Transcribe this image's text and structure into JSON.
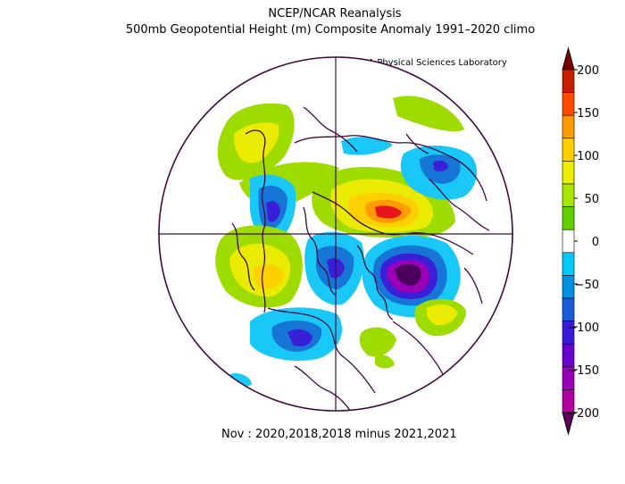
{
  "title": {
    "line1": "NCEP/NCAR Reanalysis",
    "line2": "500mb Geopotential Height (m) Composite Anomaly 1991–2020 climo"
  },
  "credit": "NOAA Physical Sciences Laboratory",
  "footer": "Nov : 2020,2018,2018 minus 2021,2021",
  "colorbar": {
    "labels": [
      "200",
      "150",
      "100",
      "50",
      "0",
      "−50",
      "−100",
      "−150",
      "−200"
    ],
    "colors": [
      "#7a0000",
      "#c81e00",
      "#ff4a00",
      "#ff9a00",
      "#ffd000",
      "#eded00",
      "#a8e600",
      "#62d100",
      "#ffffff",
      "#00c8f8",
      "#0090e0",
      "#1a5ad8",
      "#3a1ad8",
      "#6a00d0",
      "#9a00b8",
      "#b000a0",
      "#60005a"
    ]
  },
  "map_projection": "north-polar-stereographic",
  "anomaly_colors": {
    "positive_strong": "#e8141c",
    "positive": "#ff9a00",
    "positive_weak": "#eaeb00",
    "positive_faint": "#9edc00",
    "negative_faint": "#19c8f7",
    "negative": "#1775d6",
    "negative_strong": "#3a1fd8",
    "negative_extreme": "#4b005e"
  }
}
